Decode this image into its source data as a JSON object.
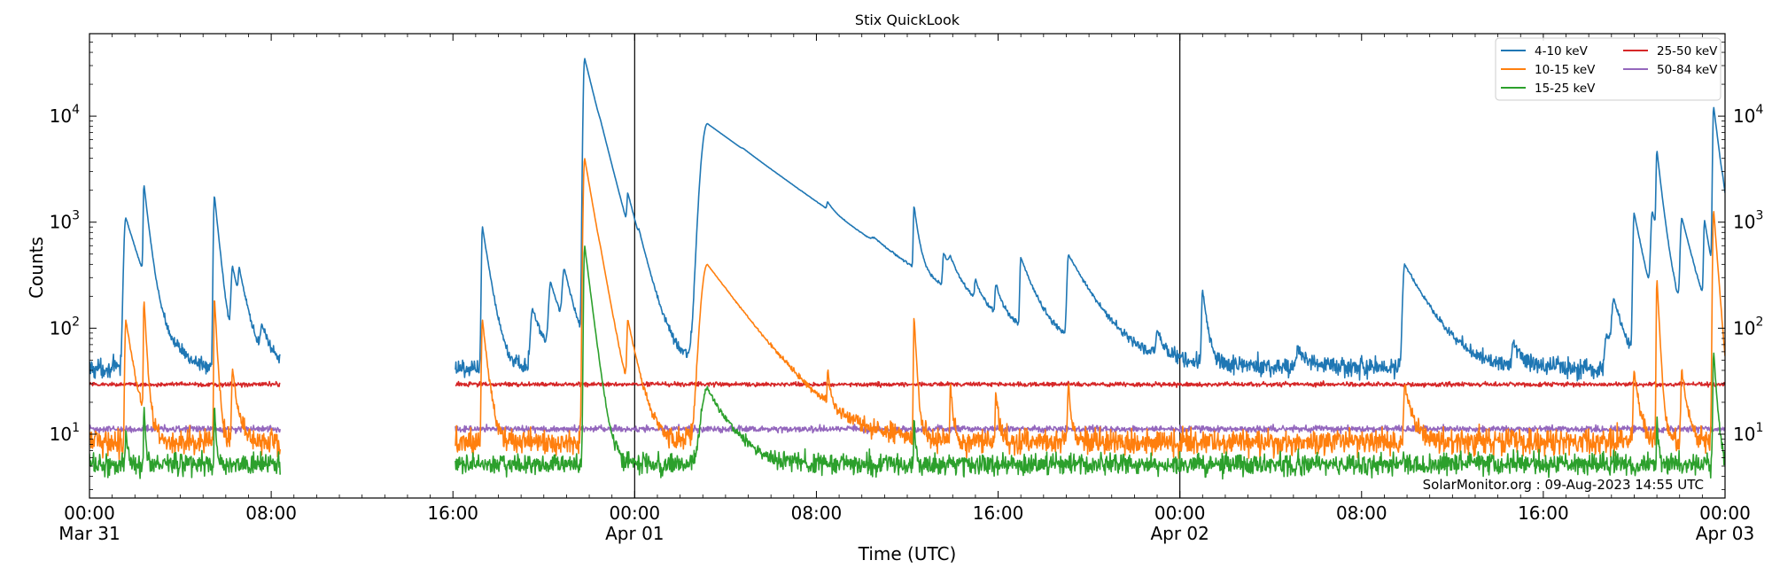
{
  "chart_data": {
    "type": "line",
    "title": "Stix QuickLook",
    "xlabel": "Time (UTC)",
    "ylabel": "Counts",
    "watermark": "SolarMonitor.org : 09-Aug-2023 14:55 UTC",
    "y_scale": "log",
    "ylim": [
      2.5,
      60000
    ],
    "xlim_hours": [
      0,
      72
    ],
    "x_ticks": [
      {
        "hour": 0,
        "label": "00:00",
        "date": "Mar 31"
      },
      {
        "hour": 8,
        "label": "08:00",
        "date": ""
      },
      {
        "hour": 16,
        "label": "16:00",
        "date": ""
      },
      {
        "hour": 24,
        "label": "00:00",
        "date": "Apr 01"
      },
      {
        "hour": 32,
        "label": "08:00",
        "date": ""
      },
      {
        "hour": 40,
        "label": "16:00",
        "date": ""
      },
      {
        "hour": 48,
        "label": "00:00",
        "date": "Apr 02"
      },
      {
        "hour": 56,
        "label": "08:00",
        "date": ""
      },
      {
        "hour": 64,
        "label": "16:00",
        "date": ""
      },
      {
        "hour": 72,
        "label": "00:00",
        "date": "Apr 03"
      }
    ],
    "y_ticks": [
      {
        "value": 10,
        "base": "10",
        "exp": "1"
      },
      {
        "value": 100,
        "base": "10",
        "exp": "2"
      },
      {
        "value": 1000,
        "base": "10",
        "exp": "3"
      },
      {
        "value": 10000,
        "base": "10",
        "exp": "4"
      }
    ],
    "day_boundaries_hours": [
      24,
      48
    ],
    "data_gap_hours": [
      8.4,
      16.1
    ],
    "legend_position": "top-right",
    "series": [
      {
        "name": "4-10 keV",
        "color": "#1f77b4",
        "baseline": 42,
        "noise": 0.09,
        "flares": [
          [
            1.6,
            1100,
            0.1,
            0.6
          ],
          [
            2.4,
            2000,
            0.04,
            0.2
          ],
          [
            5.5,
            1800,
            0.05,
            0.2
          ],
          [
            6.3,
            350,
            0.08,
            0.4
          ],
          [
            6.6,
            220,
            0.06,
            0.3
          ],
          [
            7.6,
            90,
            0.1,
            0.4
          ],
          [
            17.3,
            900,
            0.05,
            0.3
          ],
          [
            19.5,
            150,
            0.1,
            0.5
          ],
          [
            20.3,
            250,
            0.1,
            0.5
          ],
          [
            20.9,
            300,
            0.1,
            0.4
          ],
          [
            21.8,
            35000,
            0.07,
            0.5
          ],
          [
            22.5,
            500,
            0.1,
            0.8
          ],
          [
            23.7,
            1000,
            0.05,
            0.5
          ],
          [
            24.2,
            150,
            0.05,
            0.3
          ],
          [
            27.2,
            8500,
            0.3,
            2.8
          ],
          [
            28.8,
            150,
            0.1,
            0.6
          ],
          [
            32.5,
            280,
            0.05,
            0.3
          ],
          [
            34.6,
            100,
            0.2,
            0.6
          ],
          [
            36.3,
            1100,
            0.04,
            0.2
          ],
          [
            37.6,
            300,
            0.05,
            0.5
          ],
          [
            37.9,
            150,
            0.1,
            0.4
          ],
          [
            39.0,
            140,
            0.05,
            0.3
          ],
          [
            39.9,
            160,
            0.05,
            0.3
          ],
          [
            41.0,
            400,
            0.05,
            0.6
          ],
          [
            43.1,
            450,
            0.08,
            1.0
          ],
          [
            47.0,
            80,
            0.05,
            0.3
          ],
          [
            49.0,
            230,
            0.05,
            0.2
          ],
          [
            53.2,
            60,
            0.1,
            0.5
          ],
          [
            57.9,
            400,
            0.1,
            1.0
          ],
          [
            62.7,
            70,
            0.1,
            0.4
          ],
          [
            66.8,
            90,
            0.1,
            0.4
          ],
          [
            67.1,
            170,
            0.1,
            0.4
          ],
          [
            68.0,
            1200,
            0.06,
            0.4
          ],
          [
            68.8,
            1100,
            0.08,
            0.5
          ],
          [
            69.0,
            4000,
            0.04,
            0.2
          ],
          [
            70.1,
            1000,
            0.08,
            0.5
          ],
          [
            71.1,
            900,
            0.05,
            0.3
          ],
          [
            71.5,
            12000,
            0.05,
            0.25
          ],
          [
            71.9,
            250,
            0.05,
            0.4
          ]
        ]
      },
      {
        "name": "10-15 keV",
        "color": "#ff7f0e",
        "baseline": 8.5,
        "noise": 0.12,
        "flares": [
          [
            1.6,
            120,
            0.05,
            0.3
          ],
          [
            2.4,
            180,
            0.03,
            0.1
          ],
          [
            5.5,
            200,
            0.03,
            0.1
          ],
          [
            6.3,
            40,
            0.05,
            0.2
          ],
          [
            17.3,
            120,
            0.05,
            0.2
          ],
          [
            21.8,
            4000,
            0.07,
            0.35
          ],
          [
            22.5,
            40,
            0.1,
            0.5
          ],
          [
            23.7,
            100,
            0.05,
            0.4
          ],
          [
            27.2,
            400,
            0.3,
            1.5
          ],
          [
            32.5,
            30,
            0.03,
            0.1
          ],
          [
            36.3,
            130,
            0.03,
            0.1
          ],
          [
            37.9,
            30,
            0.03,
            0.1
          ],
          [
            39.9,
            25,
            0.03,
            0.1
          ],
          [
            43.1,
            30,
            0.05,
            0.1
          ],
          [
            57.9,
            30,
            0.05,
            0.3
          ],
          [
            68.0,
            40,
            0.05,
            0.2
          ],
          [
            69.0,
            300,
            0.03,
            0.1
          ],
          [
            70.1,
            40,
            0.05,
            0.2
          ],
          [
            71.5,
            1300,
            0.05,
            0.15
          ]
        ]
      },
      {
        "name": "15-25 keV",
        "color": "#2ca02c",
        "baseline": 5.2,
        "noise": 0.1,
        "flares": [
          [
            1.6,
            10,
            0.03,
            0.1
          ],
          [
            2.4,
            20,
            0.02,
            0.06
          ],
          [
            5.5,
            20,
            0.02,
            0.06
          ],
          [
            21.8,
            600,
            0.05,
            0.25
          ],
          [
            27.2,
            27,
            0.3,
            0.9
          ],
          [
            36.3,
            15,
            0.02,
            0.06
          ],
          [
            69.0,
            15,
            0.02,
            0.06
          ],
          [
            71.5,
            60,
            0.04,
            0.12
          ]
        ]
      },
      {
        "name": "25-50 keV",
        "color": "#d62728",
        "baseline": 29.5,
        "noise": 0.02,
        "flares": []
      },
      {
        "name": "50-84 keV",
        "color": "#9467bd",
        "baseline": 11.2,
        "noise": 0.03,
        "flares": []
      }
    ]
  }
}
